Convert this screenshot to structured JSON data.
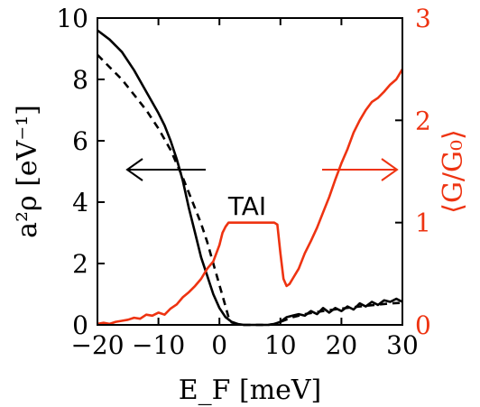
{
  "chart_data": {
    "type": "line",
    "title": "",
    "xlabel": "E_F [meV]",
    "ylabel_left": "a²ρ [eV⁻¹]",
    "ylabel_right": "⟨G/G₀⟩",
    "xlim": [
      -20,
      30
    ],
    "ylim_left": [
      0,
      10
    ],
    "ylim_right": [
      0,
      3
    ],
    "x_ticks": [
      -20,
      -10,
      0,
      10,
      20,
      30
    ],
    "x_tick_labels": [
      "−20",
      "−10",
      "0",
      "10",
      "20",
      "30"
    ],
    "y_ticks_left": [
      0,
      2,
      4,
      6,
      8,
      10
    ],
    "y_tick_labels_left": [
      "0",
      "2",
      "4",
      "6",
      "8",
      "10"
    ],
    "y_ticks_right": [
      0,
      1,
      2,
      3
    ],
    "y_tick_labels_right": [
      "0",
      "1",
      "2",
      "3"
    ],
    "grid": false,
    "legend": "none",
    "colors": {
      "left_axis": "#000000",
      "right_axis": "#ee3311"
    },
    "series": [
      {
        "axis": "left",
        "style": "solid",
        "color": "#000000",
        "points": [
          [
            -20,
            9.6
          ],
          [
            -18,
            9.3
          ],
          [
            -16,
            8.9
          ],
          [
            -14,
            8.3
          ],
          [
            -12,
            7.6
          ],
          [
            -10,
            6.9
          ],
          [
            -9,
            6.5
          ],
          [
            -8,
            6.0
          ],
          [
            -7,
            5.4
          ],
          [
            -6,
            4.7
          ],
          [
            -5,
            3.8
          ],
          [
            -4,
            3.0
          ],
          [
            -3,
            2.2
          ],
          [
            -2,
            1.6
          ],
          [
            -1,
            1.0
          ],
          [
            0,
            0.55
          ],
          [
            1,
            0.25
          ],
          [
            2,
            0.1
          ],
          [
            3,
            0.03
          ],
          [
            4,
            0.0
          ],
          [
            6,
            0.0
          ],
          [
            8,
            0.0
          ],
          [
            9,
            0.03
          ],
          [
            10,
            0.1
          ],
          [
            11,
            0.25
          ],
          [
            12,
            0.3
          ],
          [
            13,
            0.35
          ],
          [
            14,
            0.3
          ],
          [
            15,
            0.45
          ],
          [
            16,
            0.35
          ],
          [
            17,
            0.55
          ],
          [
            18,
            0.4
          ],
          [
            19,
            0.55
          ],
          [
            20,
            0.45
          ],
          [
            21,
            0.6
          ],
          [
            22,
            0.5
          ],
          [
            23,
            0.7
          ],
          [
            24,
            0.6
          ],
          [
            25,
            0.75
          ],
          [
            26,
            0.65
          ],
          [
            27,
            0.8
          ],
          [
            28,
            0.75
          ],
          [
            29,
            0.85
          ],
          [
            30,
            0.75
          ]
        ]
      },
      {
        "axis": "left",
        "style": "dashed",
        "color": "#000000",
        "points": [
          [
            -20,
            8.8
          ],
          [
            -18,
            8.4
          ],
          [
            -16,
            8.0
          ],
          [
            -14,
            7.5
          ],
          [
            -12,
            7.0
          ],
          [
            -10,
            6.4
          ],
          [
            -8,
            5.7
          ],
          [
            -6,
            4.8
          ],
          [
            -4,
            3.8
          ],
          [
            -3,
            3.3
          ],
          [
            -2,
            2.7
          ],
          [
            -1,
            2.0
          ],
          [
            0,
            1.3
          ],
          [
            1,
            0.6
          ],
          [
            1.5,
            0.25
          ],
          [
            2,
            0.08
          ],
          [
            3,
            0.02
          ],
          [
            4,
            0.0
          ],
          [
            8,
            0.0
          ],
          [
            9,
            0.03
          ],
          [
            10,
            0.1
          ],
          [
            12,
            0.25
          ],
          [
            14,
            0.35
          ],
          [
            16,
            0.42
          ],
          [
            18,
            0.48
          ],
          [
            20,
            0.53
          ],
          [
            22,
            0.58
          ],
          [
            24,
            0.62
          ],
          [
            26,
            0.66
          ],
          [
            28,
            0.7
          ],
          [
            30,
            0.72
          ]
        ]
      },
      {
        "axis": "right",
        "style": "solid",
        "color": "#ee3311",
        "points": [
          [
            -20,
            0.01
          ],
          [
            -19,
            0.02
          ],
          [
            -18,
            0.01
          ],
          [
            -17,
            0.03
          ],
          [
            -16,
            0.04
          ],
          [
            -15,
            0.05
          ],
          [
            -14,
            0.07
          ],
          [
            -13,
            0.06
          ],
          [
            -12,
            0.1
          ],
          [
            -11,
            0.09
          ],
          [
            -10,
            0.12
          ],
          [
            -9,
            0.1
          ],
          [
            -8,
            0.16
          ],
          [
            -7,
            0.2
          ],
          [
            -6,
            0.27
          ],
          [
            -5,
            0.32
          ],
          [
            -4,
            0.38
          ],
          [
            -3,
            0.45
          ],
          [
            -2,
            0.55
          ],
          [
            -1,
            0.62
          ],
          [
            0,
            0.78
          ],
          [
            0.5,
            0.9
          ],
          [
            1,
            0.96
          ],
          [
            1.5,
            1.0
          ],
          [
            2,
            1.0
          ],
          [
            9,
            1.0
          ],
          [
            9.5,
            0.98
          ],
          [
            10,
            0.7
          ],
          [
            10.5,
            0.45
          ],
          [
            11,
            0.38
          ],
          [
            11.5,
            0.4
          ],
          [
            12,
            0.45
          ],
          [
            13,
            0.55
          ],
          [
            14,
            0.7
          ],
          [
            15,
            0.82
          ],
          [
            16,
            0.95
          ],
          [
            17,
            1.1
          ],
          [
            18,
            1.25
          ],
          [
            19,
            1.42
          ],
          [
            20,
            1.58
          ],
          [
            21,
            1.72
          ],
          [
            22,
            1.88
          ],
          [
            23,
            2.0
          ],
          [
            24,
            2.1
          ],
          [
            25,
            2.18
          ],
          [
            26,
            2.22
          ],
          [
            27,
            2.28
          ],
          [
            28,
            2.35
          ],
          [
            29,
            2.4
          ],
          [
            30,
            2.5
          ]
        ]
      }
    ],
    "annotations": {
      "label": "TAI",
      "arrow_left": "←",
      "arrow_right": "→"
    }
  }
}
